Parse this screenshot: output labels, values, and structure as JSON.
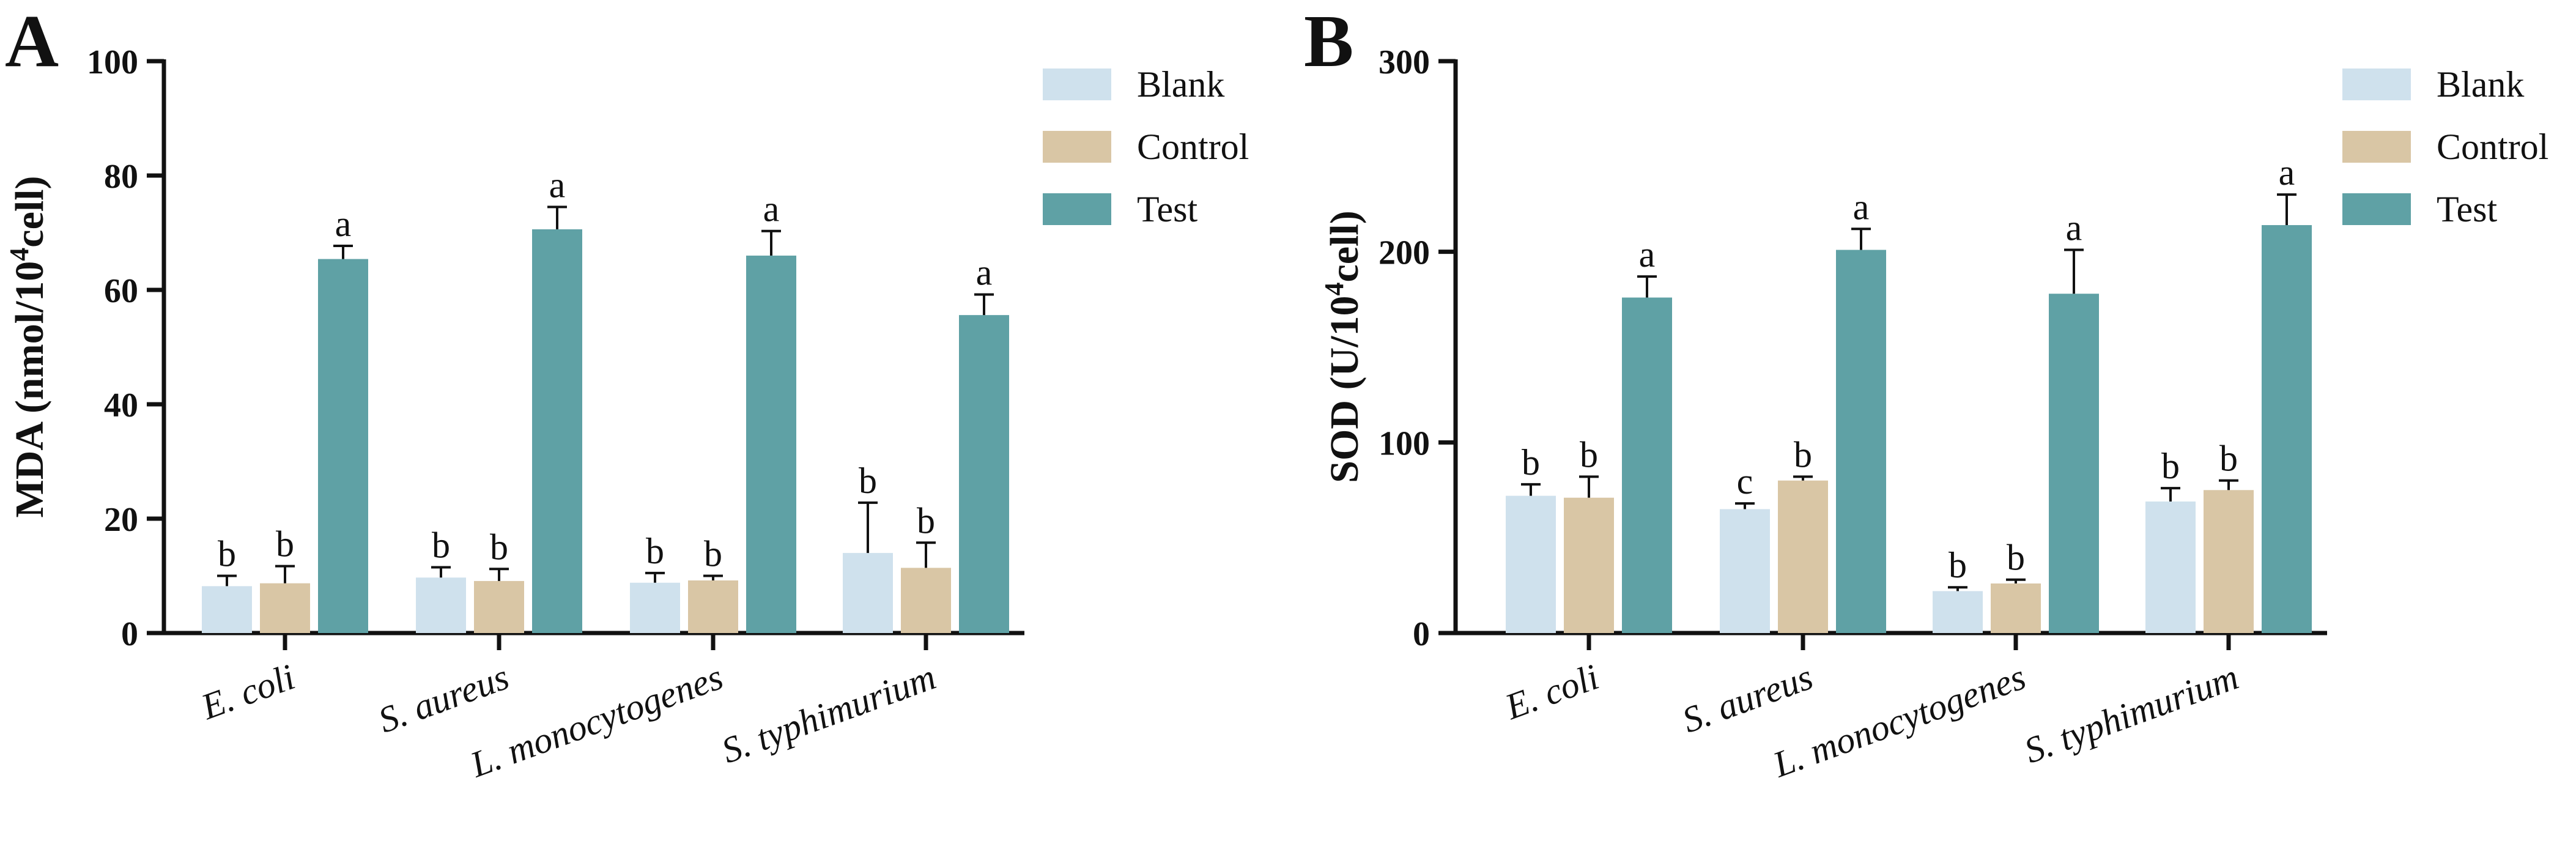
{
  "colors": {
    "Blank": "#cfe1ed",
    "Control": "#d9c6a5",
    "Test": "#5fa1a5"
  },
  "chart_data": [
    {
      "type": "bar",
      "panel": "A",
      "ylabel_main": "MDA (nmol/10",
      "ylabel_sup": "4",
      "ylabel_end": "cell)",
      "ylim": [
        0,
        100
      ],
      "yticks": [
        0,
        20,
        40,
        60,
        80,
        100
      ],
      "tick_labels": [
        "0",
        "20",
        "40",
        "60",
        "80",
        "100"
      ],
      "categories": [
        "E. coli",
        "S. aureus",
        "L. monocytogenes",
        "S. typhimurium"
      ],
      "legend_position": "top-right",
      "series": [
        {
          "name": "Blank",
          "values": [
            8.2,
            9.7,
            8.8,
            14.0
          ],
          "errors": [
            1.8,
            1.8,
            1.7,
            8.8
          ],
          "letters": [
            "b",
            "b",
            "b",
            "b"
          ]
        },
        {
          "name": "Control",
          "values": [
            8.7,
            9.1,
            9.2,
            11.4
          ],
          "errors": [
            3.0,
            2.1,
            0.8,
            4.4
          ],
          "letters": [
            "b",
            "b",
            "b",
            "b"
          ]
        },
        {
          "name": "Test",
          "values": [
            65.4,
            70.6,
            66.0,
            55.6
          ],
          "errors": [
            2.3,
            3.9,
            4.3,
            3.6
          ],
          "letters": [
            "a",
            "a",
            "a",
            "a"
          ]
        }
      ]
    },
    {
      "type": "bar",
      "panel": "B",
      "ylabel_main": "SOD (U/10",
      "ylabel_sup": "4",
      "ylabel_end": "cell)",
      "ylim": [
        0,
        300
      ],
      "yticks": [
        0,
        100,
        200,
        300
      ],
      "tick_labels": [
        "0",
        "100",
        "200",
        "300"
      ],
      "categories": [
        "E. coli",
        "S. aureus",
        "L. monocytogenes",
        "S. typhimurium"
      ],
      "legend_position": "top-right",
      "series": [
        {
          "name": "Blank",
          "values": [
            72,
            65,
            22,
            69
          ],
          "errors": [
            6,
            3,
            2,
            7
          ],
          "letters": [
            "b",
            "c",
            "b",
            "b"
          ]
        },
        {
          "name": "Control",
          "values": [
            71,
            80,
            26,
            75
          ],
          "errors": [
            11,
            2,
            2,
            5
          ],
          "letters": [
            "b",
            "b",
            "b",
            "b"
          ]
        },
        {
          "name": "Test",
          "values": [
            176,
            201,
            178,
            214
          ],
          "errors": [
            11,
            11,
            23,
            16
          ],
          "letters": [
            "a",
            "a",
            "a",
            "a"
          ]
        }
      ]
    }
  ]
}
